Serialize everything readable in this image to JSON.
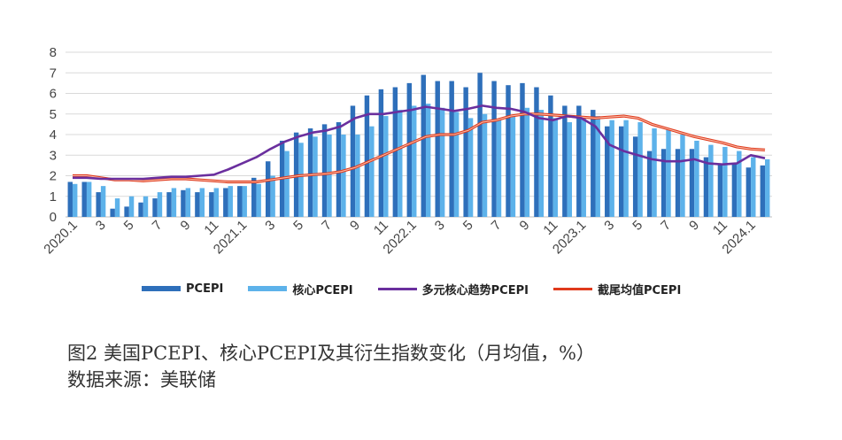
{
  "chart_data": {
    "type": "bar+line",
    "x": [
      "2020.1",
      "2",
      "3",
      "4",
      "5",
      "6",
      "7",
      "8",
      "9",
      "10",
      "11",
      "12",
      "2021.1",
      "2",
      "3",
      "4",
      "5",
      "6",
      "7",
      "8",
      "9",
      "10",
      "11",
      "12",
      "2022.1",
      "2",
      "3",
      "4",
      "5",
      "6",
      "7",
      "8",
      "9",
      "10",
      "11",
      "12",
      "2023.1",
      "2",
      "3",
      "4",
      "5",
      "6",
      "7",
      "8",
      "9",
      "10",
      "11",
      "12",
      "2024.1",
      "2"
    ],
    "x_tick_labels": [
      "2020.1",
      "3",
      "5",
      "7",
      "9",
      "11",
      "2021.1",
      "3",
      "5",
      "7",
      "9",
      "11",
      "2022.1",
      "3",
      "5",
      "7",
      "9",
      "11",
      "2023.1",
      "3",
      "5",
      "7",
      "9",
      "11",
      "2024.1"
    ],
    "ylim": [
      0,
      8
    ],
    "yticks": [
      "0",
      "1",
      "2",
      "3",
      "4",
      "5",
      "6",
      "7",
      "8"
    ],
    "grid": "horizontal",
    "legend_position": "bottom",
    "series": [
      {
        "name": "PCEPI",
        "kind": "bar",
        "color": "#2e6fba",
        "values": [
          1.7,
          1.7,
          1.2,
          0.4,
          0.5,
          0.7,
          0.9,
          1.2,
          1.3,
          1.2,
          1.2,
          1.4,
          1.5,
          1.9,
          2.7,
          3.7,
          4.1,
          4.3,
          4.5,
          4.6,
          5.4,
          5.9,
          6.2,
          6.3,
          6.5,
          6.9,
          6.6,
          6.6,
          6.3,
          7.0,
          6.6,
          6.4,
          6.5,
          6.3,
          5.9,
          5.4,
          5.4,
          5.2,
          4.4,
          4.4,
          3.9,
          3.2,
          3.3,
          3.3,
          3.3,
          2.9,
          2.6,
          2.6,
          2.4,
          2.5
        ]
      },
      {
        "name": "核心PCEPI",
        "kind": "bar",
        "color": "#5db2ea",
        "values": [
          1.6,
          1.7,
          1.5,
          0.9,
          1.0,
          1.0,
          1.2,
          1.4,
          1.4,
          1.4,
          1.4,
          1.5,
          1.5,
          1.6,
          2.0,
          3.2,
          3.6,
          3.9,
          4.0,
          4.0,
          4.0,
          4.4,
          4.9,
          5.2,
          5.4,
          5.5,
          5.3,
          5.1,
          4.8,
          5.0,
          4.7,
          4.9,
          5.3,
          5.2,
          4.8,
          4.6,
          4.8,
          4.9,
          4.7,
          4.7,
          4.6,
          4.3,
          4.3,
          4.0,
          3.7,
          3.5,
          3.4,
          3.2,
          2.9,
          2.8
        ]
      },
      {
        "name": "多元核心趋势PCEPI",
        "kind": "line",
        "color": "#6a2f9e",
        "values": [
          1.9,
          1.9,
          1.85,
          1.85,
          1.85,
          1.85,
          1.9,
          1.95,
          1.95,
          2.0,
          2.05,
          2.3,
          2.6,
          2.9,
          3.3,
          3.65,
          3.9,
          4.1,
          4.2,
          4.4,
          4.8,
          5.0,
          5.0,
          5.1,
          5.2,
          5.35,
          5.25,
          5.15,
          5.25,
          5.4,
          5.3,
          5.25,
          5.1,
          4.8,
          4.7,
          4.9,
          4.8,
          4.4,
          3.5,
          3.2,
          3.0,
          2.8,
          2.7,
          2.7,
          2.8,
          2.6,
          2.55,
          2.6,
          3.0,
          2.85
        ]
      },
      {
        "name": "截尾均值PCEPI",
        "kind": "line",
        "color": "#e03a1c",
        "values": [
          2.0,
          2.0,
          1.9,
          1.8,
          1.8,
          1.75,
          1.8,
          1.85,
          1.85,
          1.8,
          1.75,
          1.7,
          1.7,
          1.7,
          1.8,
          1.9,
          2.0,
          2.05,
          2.1,
          2.2,
          2.4,
          2.7,
          3.0,
          3.3,
          3.6,
          3.9,
          4.0,
          4.0,
          4.2,
          4.6,
          4.7,
          4.9,
          5.0,
          5.0,
          4.95,
          4.9,
          4.85,
          4.8,
          4.85,
          4.9,
          4.8,
          4.5,
          4.3,
          4.1,
          3.9,
          3.75,
          3.6,
          3.4,
          3.3,
          3.25
        ]
      }
    ]
  },
  "caption": {
    "line1": "图2  美国PCEPI、核心PCEPI及其衍生指数变化（月均值，%）",
    "line2": "数据来源：美联储"
  }
}
